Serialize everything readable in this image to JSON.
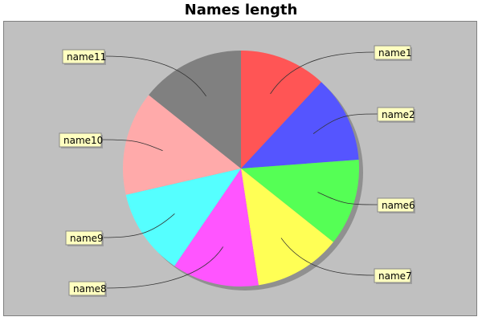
{
  "chart_data": {
    "type": "pie",
    "title": "Names length",
    "categories": [
      "name1",
      "name2",
      "name6",
      "name7",
      "name8",
      "name9",
      "name10",
      "name11"
    ],
    "values": [
      5,
      5,
      5,
      5,
      5,
      5,
      6,
      6
    ],
    "colors": [
      "#ff5555",
      "#5555ff",
      "#55ff55",
      "#ffff55",
      "#ff55ff",
      "#55ffff",
      "#ffaaaa",
      "#808080"
    ],
    "label_background": "#ffffc0",
    "plot_background": "#c0c0c0",
    "grid": false,
    "legend": "none",
    "start_angle_deg": 90,
    "direction": "clockwise"
  }
}
